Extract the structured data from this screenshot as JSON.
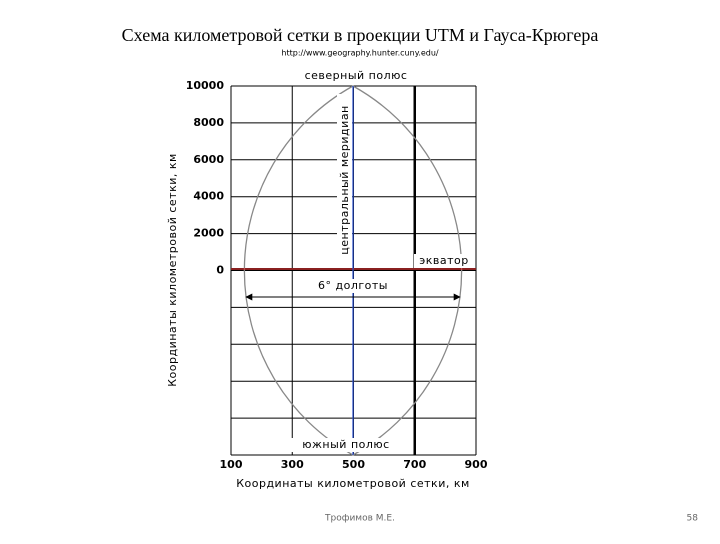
{
  "header": {
    "title": "Схема километровой сетки в проекции UTM и Гауса-Крюгера",
    "url": "http://www.geography.hunter.cuny.edu/"
  },
  "diagram": {
    "north_pole": "северный полюс",
    "south_pole": "южный полюс",
    "equator": "экватор",
    "central_meridian": "центральный меридиан",
    "longitude_span": "6° долготы",
    "y_axis_label": "Координаты километровой сетки, км",
    "x_axis_label": "Координаты километровой сетки, км",
    "y_ticks": [
      10000,
      8000,
      6000,
      4000,
      2000,
      0
    ],
    "x_ticks": [
      100,
      300,
      500,
      700,
      900
    ]
  },
  "footer": {
    "author": "Трофимов М.Е.",
    "page": "58"
  }
}
